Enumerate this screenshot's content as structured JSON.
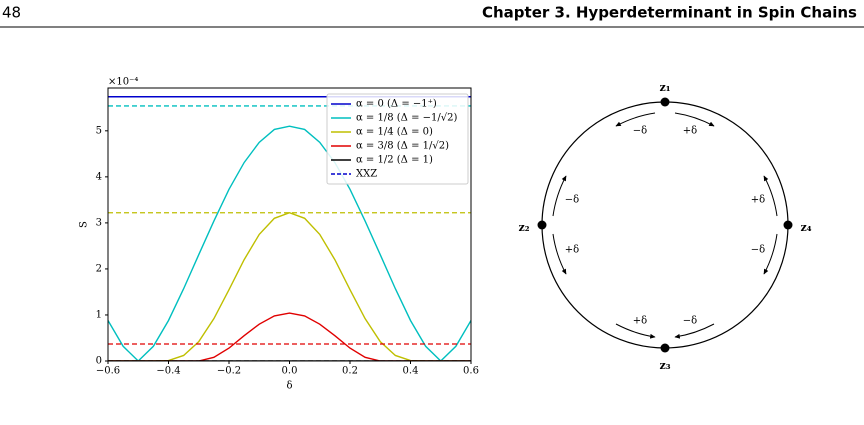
{
  "header": {
    "page_number": "48",
    "chapter": "Chapter 3. Hyperdeterminant in Spin Chains"
  },
  "chart_data": {
    "type": "line",
    "y_label": "S",
    "x_label": "δ",
    "y_offset_label": "×10⁻⁴",
    "x": [
      -0.6,
      -0.55,
      -0.5,
      -0.45,
      -0.4,
      -0.35,
      -0.3,
      -0.25,
      -0.2,
      -0.15,
      -0.1,
      -0.05,
      0,
      0.05,
      0.1,
      0.15,
      0.2,
      0.25,
      0.3,
      0.35,
      0.4,
      0.45,
      0.5,
      0.55,
      0.6
    ],
    "xlim": [
      -0.6,
      0.6
    ],
    "ylim": [
      0,
      5.93
    ],
    "xticks": [
      {
        "value": -0.6,
        "label": "−0.6"
      },
      {
        "value": -0.4,
        "label": "−0.4"
      },
      {
        "value": -0.2,
        "label": "−0.2"
      },
      {
        "value": 0,
        "label": "0.0"
      },
      0.2,
      0.4,
      0.6
    ],
    "yticks": [
      0,
      1,
      2,
      3,
      4,
      5
    ],
    "legend": "upper right",
    "series": [
      {
        "name": "α = 0 (Δ = −1⁺)",
        "color": "#0000cc",
        "xxz": 5.74,
        "values": [
          5.74,
          5.74,
          5.74,
          5.74,
          5.74,
          5.74,
          5.74,
          5.74,
          5.74,
          5.74,
          5.74,
          5.74,
          5.74,
          5.74,
          5.74,
          5.74,
          5.74,
          5.74,
          5.74,
          5.74,
          5.74,
          5.74,
          5.74,
          5.74,
          5.74
        ]
      },
      {
        "name": "α = 1/8 (Δ = −1/√2)",
        "color": "#00bfbf",
        "xxz": 5.54,
        "values": [
          0.88,
          0.32,
          0,
          0.32,
          0.88,
          1.57,
          2.31,
          3.04,
          3.73,
          4.31,
          4.75,
          5.03,
          5.1,
          5.03,
          4.75,
          4.31,
          3.73,
          3.04,
          2.31,
          1.57,
          0.88,
          0.32,
          0,
          0.32,
          0.88
        ]
      },
      {
        "name": "α = 1/4 (Δ = 0)",
        "color": "#bfbf00",
        "xxz": 3.22,
        "values": [
          0,
          0,
          0,
          0,
          0.01,
          0.12,
          0.42,
          0.92,
          1.55,
          2.2,
          2.75,
          3.1,
          3.22,
          3.1,
          2.75,
          2.2,
          1.55,
          0.92,
          0.42,
          0.12,
          0.01,
          0,
          0,
          0,
          0
        ]
      },
      {
        "name": "α = 3/8 (Δ = 1/√2)",
        "color": "#e00000",
        "xxz": 0.37,
        "values": [
          0,
          0,
          0,
          0,
          0,
          0,
          0,
          0.08,
          0.28,
          0.55,
          0.8,
          0.98,
          1.04,
          0.98,
          0.8,
          0.55,
          0.28,
          0.08,
          0,
          0,
          0,
          0,
          0,
          0,
          0
        ]
      },
      {
        "name": "α = 1/2 (Δ = 1)",
        "color": "#000000",
        "xxz": 0,
        "values": [
          0,
          0,
          0,
          0,
          0,
          0,
          0,
          0,
          0,
          0,
          0,
          0,
          0,
          0,
          0,
          0,
          0,
          0,
          0,
          0,
          0,
          0,
          0,
          0,
          0
        ]
      }
    ],
    "xxz_legend": {
      "name": "XXZ",
      "color": "#0000cc"
    }
  },
  "diagram": {
    "nodes": [
      {
        "label": "z₁"
      },
      {
        "label": "z₂"
      },
      {
        "label": "z₃"
      },
      {
        "label": "z₄"
      }
    ],
    "arrows": [
      {
        "label": "−δ"
      },
      {
        "label": "+δ"
      },
      {
        "label": "−δ"
      },
      {
        "label": "+δ"
      },
      {
        "label": "+δ"
      },
      {
        "label": "−δ"
      },
      {
        "label": "+δ"
      },
      {
        "label": "−δ"
      }
    ]
  }
}
